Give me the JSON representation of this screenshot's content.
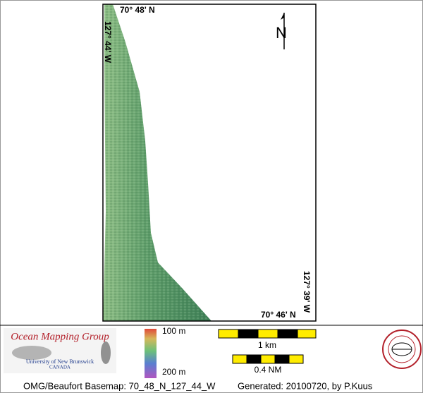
{
  "map": {
    "labels": {
      "top_lat": "70° 48' N",
      "left_lon": "127° 44' W",
      "right_lon": "127° 39' W",
      "bottom_lat": "70° 46' N",
      "north": "N"
    },
    "logo": {
      "name": "Ocean Mapping Group",
      "university": "University of New Brunswick",
      "country": "CANADA"
    },
    "depth_legend": {
      "top": "100 m",
      "bottom": "200 m"
    },
    "scale": {
      "km": "1 km",
      "nm": "0.4 NM"
    },
    "footer": {
      "basemap": "OMG/Beaufort Basemap: 70_48_N_127_44_W",
      "generated": "Generated: 20100720, by P.Kuus"
    }
  }
}
